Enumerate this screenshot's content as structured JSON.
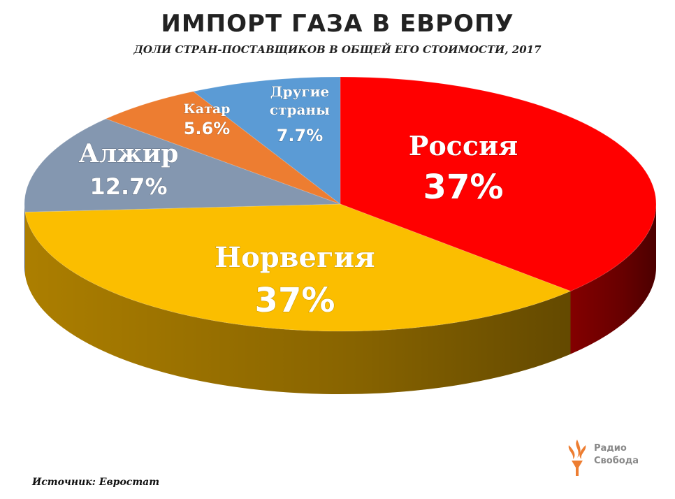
{
  "chart_data": {
    "type": "pie",
    "title": "ИМПОРТ ГАЗА В ЕВРОПУ",
    "subtitle": "ДОЛИ СТРАН-ПОСТАВЩИКОВ В ОБЩЕЙ ЕГО СТОИМОСТИ, 2017",
    "slices": [
      {
        "name": "Россия",
        "value": 37,
        "label": "37%",
        "color": "#ff0000",
        "side_color": "#8a0000"
      },
      {
        "name": "Норвегия",
        "value": 37,
        "label": "37%",
        "color": "#fbbe00",
        "side_color": "#b58500"
      },
      {
        "name": "Алжир",
        "value": 12.7,
        "label": "12.7%",
        "color": "#8497b0",
        "side_color": "#56677c"
      },
      {
        "name": "Катар",
        "value": 5.6,
        "label": "5.6%",
        "color": "#ed7d31",
        "side_color": "#a9521b"
      },
      {
        "name": "Другие страны",
        "value": 7.7,
        "label": "7.7%",
        "color": "#5b9bd5",
        "side_color": "#32679a"
      }
    ]
  },
  "source": "Источник: Евростат",
  "logo": {
    "text": "Радио\nСвобода",
    "icon": "torch-logo-icon",
    "color": "#ed7d31"
  }
}
